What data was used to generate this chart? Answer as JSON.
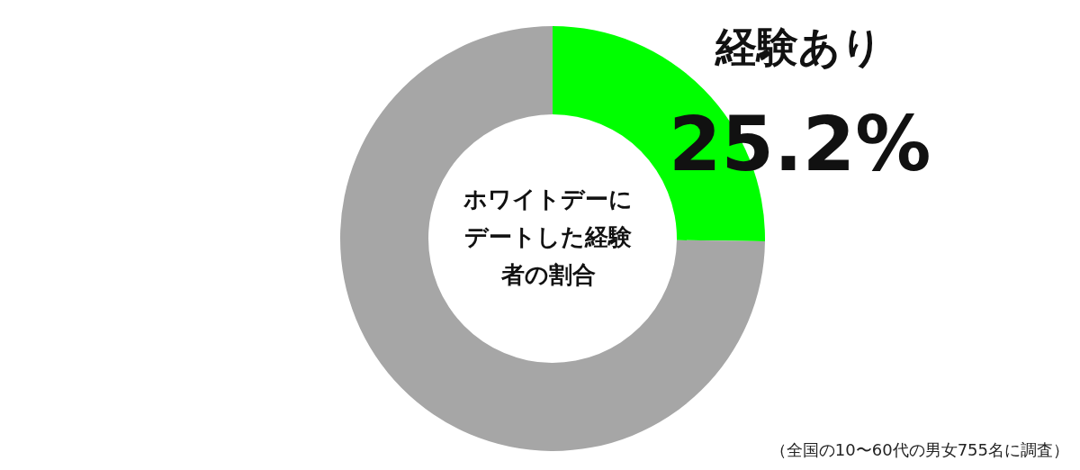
{
  "chart_data": {
    "type": "donut",
    "title": "ホワイトデーにデートした経験者の割合",
    "categories": [
      "経験あり",
      null
    ],
    "values": [
      25.2,
      74.8
    ],
    "colors": [
      "#00ff00",
      "#a6a6a6"
    ],
    "value_labels": [
      "25.2%",
      null
    ],
    "annotations": [
      "（全国の10〜60代の男女755名に調査）"
    ]
  }
}
